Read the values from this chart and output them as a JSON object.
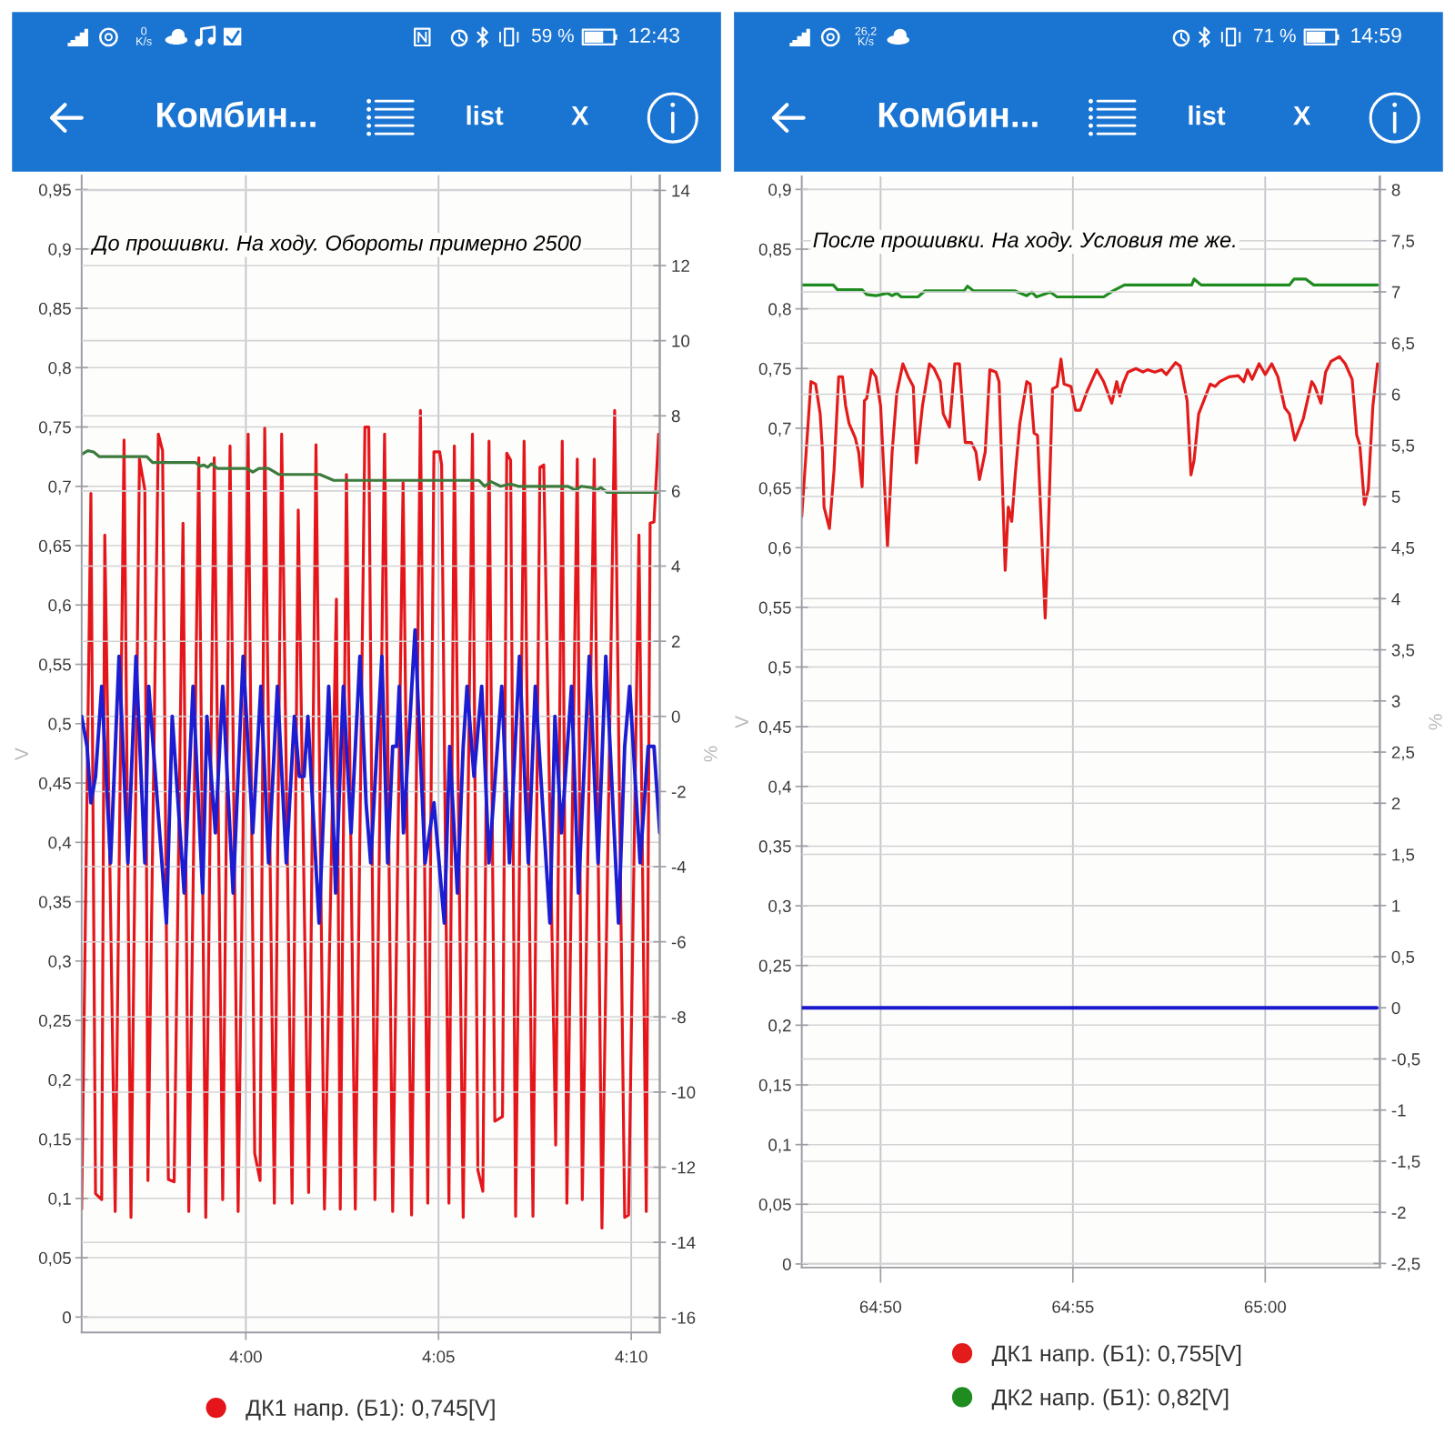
{
  "chart_data": [
    {
      "type": "line",
      "title": "Комбин...",
      "ylabel": "V",
      "y2label": "%",
      "annotations": [
        "До прошивки. На ходу. Обороты примерно 2500",
        "list",
        "X",
        "0\nK/s",
        "59 %",
        "12:43"
      ],
      "series": [
        {
          "name": "ДК1 напр. (Б1): 0,745[V]",
          "color": "#e4161b",
          "x": [
            235.74,
            235.98,
            236.1,
            236.26,
            236.34,
            236.61,
            236.84,
            237.02,
            237.24,
            237.38,
            237.46,
            237.73,
            237.84,
            237.99,
            238.14,
            238.37,
            238.52,
            238.78,
            238.96,
            239.18,
            239.4,
            239.59,
            239.8,
            240.06,
            240.23,
            240.37,
            240.49,
            240.74,
            240.93,
            241.2,
            241.36,
            241.63,
            241.82,
            242.04,
            242.35,
            242.45,
            242.61,
            242.84,
            243.09,
            243.19,
            243.35,
            243.6,
            243.81,
            244.08,
            244.3,
            244.53,
            244.72,
            244.88,
            245.03,
            245.08,
            245.27,
            245.41,
            245.64,
            245.88,
            246.02,
            246.15,
            246.31,
            246.46,
            246.66,
            246.77,
            246.87,
            247.0,
            247.22,
            247.45,
            247.63,
            247.73,
            248.04,
            248.21,
            248.33,
            248.6,
            248.73,
            249.04,
            249.24,
            249.57,
            249.83,
            249.93,
            250.2,
            250.39,
            250.49,
            250.59,
            250.71
          ],
          "values": [
            0.091,
            0.694,
            0.104,
            0.099,
            0.659,
            0.089,
            0.739,
            0.084,
            0.723,
            0.697,
            0.115,
            0.744,
            0.73,
            0.116,
            0.114,
            0.669,
            0.089,
            0.724,
            0.084,
            0.724,
            0.099,
            0.734,
            0.089,
            0.744,
            0.138,
            0.115,
            0.749,
            0.096,
            0.744,
            0.096,
            0.68,
            0.105,
            0.735,
            0.091,
            0.605,
            0.091,
            0.71,
            0.091,
            0.75,
            0.75,
            0.099,
            0.744,
            0.089,
            0.703,
            0.086,
            0.764,
            0.096,
            0.729,
            0.729,
            0.718,
            0.096,
            0.734,
            0.084,
            0.744,
            0.124,
            0.106,
            0.738,
            0.165,
            0.169,
            0.728,
            0.722,
            0.085,
            0.738,
            0.085,
            0.716,
            0.718,
            0.145,
            0.738,
            0.096,
            0.723,
            0.099,
            0.723,
            0.075,
            0.764,
            0.084,
            0.086,
            0.659,
            0.089,
            0.669,
            0.67,
            0.744
          ]
        },
        {
          "color": "#3d7a3d",
          "x": [
            235.74,
            235.9,
            236.05,
            236.2,
            237.43,
            237.58,
            238.7,
            238.81,
            238.91,
            239.01,
            239.11,
            239.27,
            240.03,
            240.18,
            240.34,
            240.59,
            240.85,
            241.92,
            242.28,
            246.05,
            246.2,
            246.36,
            246.61,
            246.87,
            247.07,
            248.35,
            248.55,
            248.7,
            248.96,
            249.11,
            249.21,
            249.37,
            250.69
          ],
          "values": [
            0.727,
            0.73,
            0.729,
            0.725,
            0.725,
            0.72,
            0.72,
            0.717,
            0.718,
            0.716,
            0.719,
            0.715,
            0.715,
            0.712,
            0.715,
            0.715,
            0.71,
            0.71,
            0.705,
            0.705,
            0.7,
            0.704,
            0.7,
            0.702,
            0.7,
            0.7,
            0.697,
            0.7,
            0.699,
            0.697,
            0.699,
            0.695,
            0.695
          ]
        },
        {
          "color": "#1c1cd2",
          "axis": "y2",
          "x": [
            235.74,
            235.88,
            235.98,
            236.1,
            236.26,
            236.49,
            236.71,
            236.94,
            237.15,
            237.38,
            237.48,
            237.94,
            238.09,
            238.4,
            238.63,
            238.88,
            238.99,
            239.21,
            239.4,
            239.67,
            239.93,
            240.18,
            240.39,
            240.59,
            240.82,
            241.05,
            241.26,
            241.39,
            241.51,
            241.61,
            241.9,
            242.15,
            242.33,
            242.53,
            242.73,
            242.96,
            243.12,
            243.24,
            243.53,
            243.68,
            243.81,
            243.91,
            243.98,
            244.09,
            244.39,
            244.65,
            244.88,
            245.15,
            245.29,
            245.49,
            245.64,
            245.74,
            245.92,
            246.12,
            246.31,
            246.64,
            246.84,
            247.1,
            247.33,
            247.51,
            247.89,
            248.02,
            248.19,
            248.45,
            248.63,
            248.91,
            249.14,
            249.34,
            249.67,
            249.83,
            249.96,
            250.23,
            250.44,
            250.59,
            250.74
          ],
          "values": [
            0,
            -0.8,
            -2.3,
            -1.6,
            0.8,
            -3.9,
            1.6,
            -3.9,
            1.6,
            -3.9,
            0.8,
            -5.5,
            0,
            -4.7,
            0.8,
            -4.7,
            0,
            -3.1,
            0.8,
            -4.7,
            1.6,
            -3.1,
            0.8,
            -3.9,
            0.8,
            -3.9,
            0,
            -1.6,
            -1.6,
            0,
            -5.5,
            0.8,
            -4.7,
            0.8,
            -3.1,
            1.6,
            -2.3,
            -3.9,
            1.6,
            -3.9,
            -0.8,
            -0.8,
            0.8,
            -3.1,
            2.3,
            -3.9,
            -2.3,
            -5.5,
            -0.8,
            -4.7,
            -0.8,
            0.8,
            -1.6,
            0.8,
            -3.9,
            0.8,
            -3.9,
            1.6,
            -3.9,
            0.8,
            -5.5,
            0,
            -3.1,
            0.8,
            -4.7,
            1.6,
            -3.9,
            1.6,
            -5.5,
            -0.8,
            0.8,
            -3.9,
            -0.8,
            -0.8,
            -3.1
          ]
        }
      ],
      "xlim": [
        235.74,
        250.74
      ],
      "xticks": [
        {
          "value": 240,
          "label": "4:00"
        },
        {
          "value": 245,
          "label": "4:05"
        },
        {
          "value": 250,
          "label": "4:10"
        }
      ],
      "ylim": [
        -0.013,
        0.962
      ],
      "yticks": [
        0,
        {
          "value": 0.05,
          "label": "0,05"
        },
        {
          "value": 0.1,
          "label": "0,1"
        },
        {
          "value": 0.15,
          "label": "0,15"
        },
        {
          "value": 0.2,
          "label": "0,2"
        },
        {
          "value": 0.25,
          "label": "0,25"
        },
        {
          "value": 0.3,
          "label": "0,3"
        },
        {
          "value": 0.35,
          "label": "0,35"
        },
        {
          "value": 0.4,
          "label": "0,4"
        },
        {
          "value": 0.45,
          "label": "0,45"
        },
        {
          "value": 0.5,
          "label": "0,5"
        },
        {
          "value": 0.55,
          "label": "0,55"
        },
        {
          "value": 0.6,
          "label": "0,6"
        },
        {
          "value": 0.65,
          "label": "0,65"
        },
        {
          "value": 0.7,
          "label": "0,7"
        },
        {
          "value": 0.75,
          "label": "0,75"
        },
        {
          "value": 0.8,
          "label": "0,8"
        },
        {
          "value": 0.85,
          "label": "0,85"
        },
        {
          "value": 0.9,
          "label": "0,9"
        },
        {
          "value": 0.95,
          "label": "0,95"
        }
      ],
      "y2lim": [
        -16.4,
        14.4
      ],
      "y2ticks": [
        -16,
        -14,
        -12,
        -10,
        -8,
        -6,
        -4,
        -2,
        0,
        2,
        4,
        6,
        8,
        10,
        12,
        14
      ],
      "grid": true,
      "legend": "bottom"
    },
    {
      "type": "line",
      "title": "Комбин...",
      "ylabel": "V",
      "y2label": "%",
      "annotations": [
        "После прошивки. На ходу. Условия те же.",
        "list",
        "X",
        "26,2\nK/s",
        "71 %",
        "14:59"
      ],
      "series": [
        {
          "name": "ДК1 напр. (Б1): 0,755[V]",
          "color": "#e21b1b",
          "x": [
            3887.95,
            3888.19,
            3888.31,
            3888.43,
            3888.49,
            3888.53,
            3888.67,
            3888.79,
            3888.91,
            3889.01,
            3889.09,
            3889.18,
            3889.34,
            3889.43,
            3889.52,
            3889.58,
            3889.64,
            3889.76,
            3889.88,
            3890.0,
            3890.18,
            3890.3,
            3890.42,
            3890.58,
            3890.72,
            3890.85,
            3890.93,
            3891.09,
            3891.27,
            3891.39,
            3891.55,
            3891.63,
            3891.79,
            3891.93,
            3892.05,
            3892.2,
            3892.36,
            3892.48,
            3892.57,
            3892.72,
            3892.84,
            3893.0,
            3893.08,
            3893.24,
            3893.32,
            3893.41,
            3893.5,
            3893.62,
            3893.8,
            3893.89,
            3893.99,
            3894.08,
            3894.28,
            3894.35,
            3894.47,
            3894.59,
            3894.69,
            3894.77,
            3894.95,
            3895.07,
            3895.19,
            3895.37,
            3895.62,
            3895.8,
            3896.01,
            3896.14,
            3896.22,
            3896.3,
            3896.43,
            3896.64,
            3896.82,
            3896.94,
            3897.13,
            3897.31,
            3897.43,
            3897.67,
            3897.79,
            3897.97,
            3898.07,
            3898.15,
            3898.27,
            3898.57,
            3898.7,
            3898.82,
            3899.06,
            3899.3,
            3899.44,
            3899.54,
            3899.66,
            3899.84,
            3900.0,
            3900.17,
            3900.33,
            3900.51,
            3900.63,
            3900.77,
            3900.99,
            3901.21,
            3901.29,
            3901.45,
            3901.57,
            3901.71,
            3901.93,
            3902.08,
            3902.26,
            3902.38,
            3902.46,
            3902.58,
            3902.68,
            3902.8,
            3902.92
          ],
          "values": [
            0.626,
            0.739,
            0.737,
            0.712,
            0.68,
            0.634,
            0.616,
            0.665,
            0.743,
            0.743,
            0.719,
            0.704,
            0.692,
            0.68,
            0.651,
            0.723,
            0.725,
            0.749,
            0.743,
            0.719,
            0.601,
            0.68,
            0.729,
            0.754,
            0.743,
            0.735,
            0.671,
            0.719,
            0.754,
            0.75,
            0.739,
            0.712,
            0.701,
            0.754,
            0.754,
            0.688,
            0.688,
            0.68,
            0.657,
            0.68,
            0.749,
            0.747,
            0.739,
            0.581,
            0.634,
            0.622,
            0.661,
            0.704,
            0.739,
            0.737,
            0.696,
            0.694,
            0.541,
            0.603,
            0.733,
            0.735,
            0.758,
            0.737,
            0.735,
            0.715,
            0.715,
            0.731,
            0.749,
            0.739,
            0.721,
            0.739,
            0.727,
            0.737,
            0.747,
            0.75,
            0.747,
            0.749,
            0.747,
            0.749,
            0.745,
            0.755,
            0.752,
            0.723,
            0.661,
            0.673,
            0.712,
            0.737,
            0.735,
            0.739,
            0.743,
            0.744,
            0.739,
            0.749,
            0.741,
            0.754,
            0.745,
            0.754,
            0.743,
            0.717,
            0.712,
            0.69,
            0.708,
            0.739,
            0.735,
            0.721,
            0.747,
            0.756,
            0.76,
            0.754,
            0.741,
            0.694,
            0.686,
            0.636,
            0.649,
            0.719,
            0.754
          ]
        },
        {
          "name": "ДК2 напр. (Б1): 0,82[V]",
          "color": "#1f8c1f",
          "x": [
            3887.95,
            3888.77,
            3888.88,
            3889.52,
            3889.64,
            3889.88,
            3890.18,
            3890.3,
            3890.42,
            3890.54,
            3890.97,
            3891.15,
            3892.17,
            3892.26,
            3892.42,
            3893.5,
            3893.8,
            3893.93,
            3894.05,
            3894.41,
            3894.59,
            3895.8,
            3896.04,
            3896.34,
            3898.09,
            3898.15,
            3898.33,
            3900.63,
            3900.75,
            3901.05,
            3901.26,
            3902.92
          ],
          "values": [
            0.82,
            0.82,
            0.816,
            0.816,
            0.812,
            0.811,
            0.813,
            0.811,
            0.813,
            0.81,
            0.81,
            0.815,
            0.815,
            0.819,
            0.815,
            0.815,
            0.811,
            0.814,
            0.81,
            0.814,
            0.81,
            0.81,
            0.815,
            0.82,
            0.82,
            0.825,
            0.82,
            0.82,
            0.825,
            0.825,
            0.82,
            0.82
          ]
        },
        {
          "color": "#1a1acc",
          "axis": "y2",
          "x": [
            3887.96,
            3902.9
          ],
          "values": [
            0,
            0
          ]
        }
      ],
      "xlim": [
        3887.95,
        3902.98
      ],
      "xticks": [
        {
          "value": 3890,
          "label": "64:50"
        },
        {
          "value": 3895,
          "label": "64:55"
        },
        {
          "value": 3900,
          "label": "65:00"
        }
      ],
      "ylim": [
        -0.003,
        0.911
      ],
      "yticks": [
        0,
        {
          "value": 0.05,
          "label": "0,05"
        },
        {
          "value": 0.1,
          "label": "0,1"
        },
        {
          "value": 0.15,
          "label": "0,15"
        },
        {
          "value": 0.2,
          "label": "0,2"
        },
        {
          "value": 0.25,
          "label": "0,25"
        },
        {
          "value": 0.3,
          "label": "0,3"
        },
        {
          "value": 0.35,
          "label": "0,35"
        },
        {
          "value": 0.4,
          "label": "0,4"
        },
        {
          "value": 0.45,
          "label": "0,45"
        },
        {
          "value": 0.5,
          "label": "0,5"
        },
        {
          "value": 0.55,
          "label": "0,55"
        },
        {
          "value": 0.6,
          "label": "0,6"
        },
        {
          "value": 0.65,
          "label": "0,65"
        },
        {
          "value": 0.7,
          "label": "0,7"
        },
        {
          "value": 0.75,
          "label": "0,75"
        },
        {
          "value": 0.8,
          "label": "0,8"
        },
        {
          "value": 0.85,
          "label": "0,85"
        },
        {
          "value": 0.9,
          "label": "0,9"
        }
      ],
      "y2lim": [
        -2.54,
        8.13
      ],
      "y2ticks": [
        {
          "value": -2.5,
          "label": "-2,5"
        },
        -2,
        {
          "value": -1.5,
          "label": "-1,5"
        },
        -1,
        {
          "value": -0.5,
          "label": "-0,5"
        },
        0,
        {
          "value": 0.5,
          "label": "0,5"
        },
        1,
        {
          "value": 1.5,
          "label": "1,5"
        },
        2,
        {
          "value": 2.5,
          "label": "2,5"
        },
        3,
        {
          "value": 3.5,
          "label": "3,5"
        },
        4,
        {
          "value": 4.5,
          "label": "4,5"
        },
        5,
        {
          "value": 5.5,
          "label": "5,5"
        },
        6,
        {
          "value": 6.5,
          "label": "6,5"
        },
        7,
        {
          "value": 7.5,
          "label": "7,5"
        },
        8
      ],
      "grid": true,
      "legend": "bottom"
    }
  ]
}
